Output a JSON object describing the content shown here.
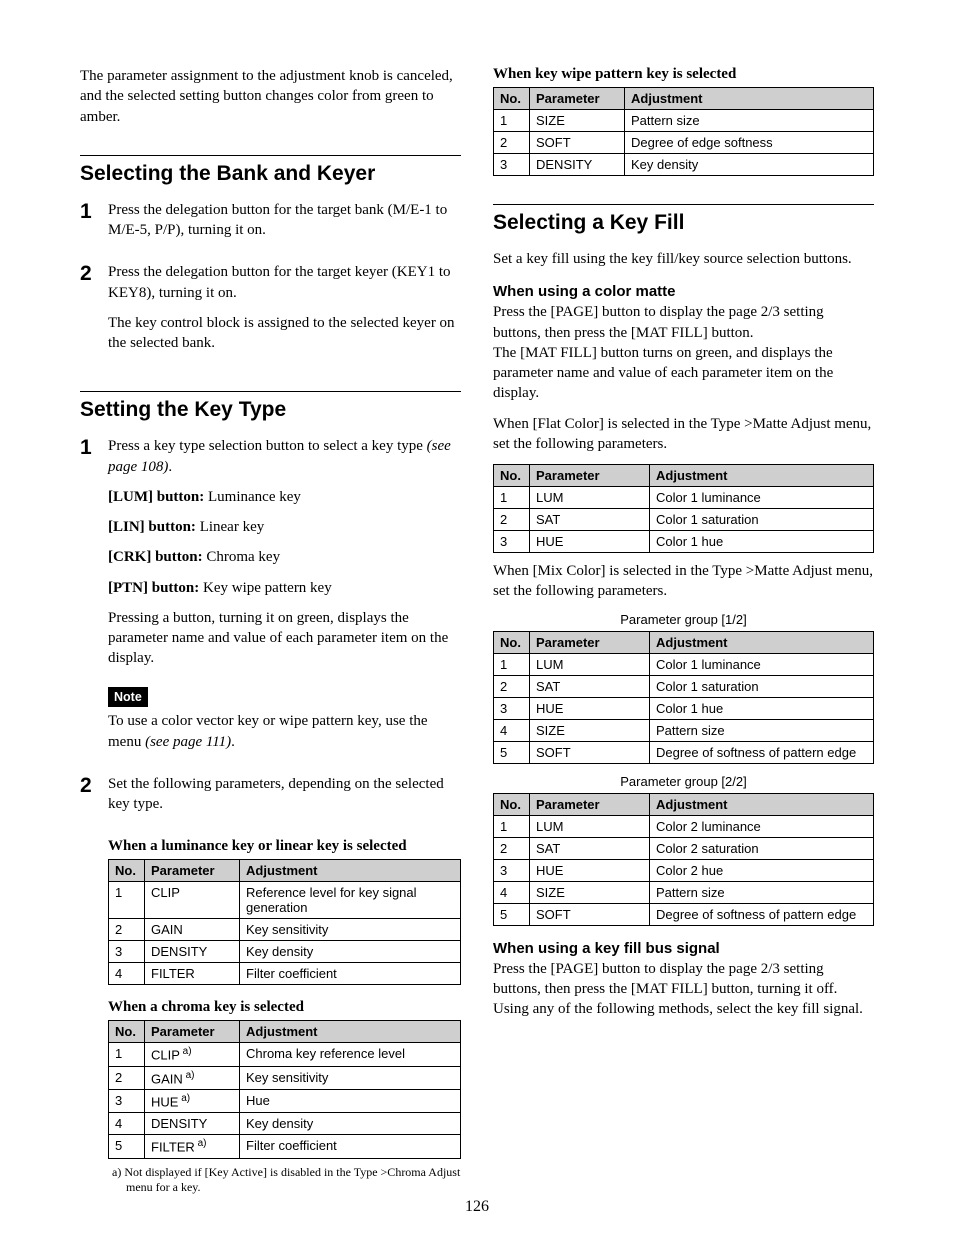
{
  "page_number": "126",
  "left": {
    "intro": "The parameter assignment to the adjustment knob is canceled, and the selected setting button changes color from green to amber.",
    "h_bank": "Selecting the Bank and Keyer",
    "bank_step1": "Press the delegation button for the target bank (M/E-1 to M/E-5, P/P), turning it on.",
    "bank_step2": "Press the delegation button for the target keyer (KEY1 to KEY8), turning it on.",
    "bank_step2_p2": "The key control block is assigned to the selected keyer on the selected bank.",
    "h_keytype": "Setting the Key Type",
    "kt_step1_a": "Press a key type selection button to select a key type ",
    "kt_step1_b": "(see page 108)",
    "kt_step1_c": ".",
    "lum_b": "[LUM] button: ",
    "lum_t": "Luminance key",
    "lin_b": "[LIN] button: ",
    "lin_t": "Linear key",
    "crk_b": "[CRK] button: ",
    "crk_t": "Chroma key",
    "ptn_b": "[PTN] button: ",
    "ptn_t": "Key wipe pattern key",
    "kt_after_btns": "Pressing a button, turning it on green, displays the parameter name and value of each parameter item on the display.",
    "note_label": "Note",
    "note_text_a": "To use a color vector key or wipe pattern key, use the menu ",
    "note_text_b": "(see page 111)",
    "note_text_c": ".",
    "kt_step2": "Set the following parameters, depending on the selected key type.",
    "sub_lum": "When a luminance key or linear key is selected",
    "sub_chroma": "When a chroma key is selected",
    "tbl_hdr_no": "No.",
    "tbl_hdr_param": "Parameter",
    "tbl_hdr_adj": "Adjustment",
    "tbl_lum": {
      "rows": [
        {
          "no": "1",
          "p": "CLIP",
          "a": "Reference level for key signal generation"
        },
        {
          "no": "2",
          "p": "GAIN",
          "a": "Key sensitivity"
        },
        {
          "no": "3",
          "p": "DENSITY",
          "a": "Key density"
        },
        {
          "no": "4",
          "p": "FILTER",
          "a": "Filter coefficient"
        }
      ]
    },
    "tbl_chroma": {
      "rows": [
        {
          "no": "1",
          "p": "CLIP",
          "sup": " a)",
          "a": "Chroma key reference level"
        },
        {
          "no": "2",
          "p": "GAIN",
          "sup": " a)",
          "a": "Key sensitivity"
        },
        {
          "no": "3",
          "p": "HUE",
          "sup": " a)",
          "a": "Hue"
        },
        {
          "no": "4",
          "p": "DENSITY",
          "sup": "",
          "a": "Key density"
        },
        {
          "no": "5",
          "p": "FILTER",
          "sup": " a)",
          "a": "Filter coefficient"
        }
      ]
    },
    "footnote": "a) Not displayed if [Key Active] is disabled in the Type >Chroma Adjust menu for a key."
  },
  "right": {
    "sub_wipe": "When key wipe pattern key is selected",
    "tbl_wipe": {
      "rows": [
        {
          "no": "1",
          "p": "SIZE",
          "a": "Pattern size"
        },
        {
          "no": "2",
          "p": "SOFT",
          "a": "Degree of edge softness"
        },
        {
          "no": "3",
          "p": "DENSITY",
          "a": "Key density"
        }
      ]
    },
    "h_keyfill": "Selecting a Key Fill",
    "keyfill_intro": "Set a key fill using the key fill/key source selection buttons.",
    "sub_matte": "When using a color matte",
    "matte_p1": "Press the [PAGE] button to display the page 2/3 setting buttons, then press the [MAT FILL] button.",
    "matte_p2": "The [MAT FILL] button turns on green, and displays the parameter name and value of each parameter item on the display.",
    "matte_flat": "When [Flat Color] is selected in the Type >Matte Adjust menu, set the following parameters.",
    "tbl_flat": {
      "rows": [
        {
          "no": "1",
          "p": "LUM",
          "a": "Color 1 luminance"
        },
        {
          "no": "2",
          "p": "SAT",
          "a": "Color 1 saturation"
        },
        {
          "no": "3",
          "p": "HUE",
          "a": "Color 1 hue"
        }
      ]
    },
    "matte_mix": "When [Mix Color] is selected in the Type >Matte Adjust menu, set the following parameters.",
    "cap12": "Parameter group [1/2]",
    "tbl_mix1": {
      "rows": [
        {
          "no": "1",
          "p": "LUM",
          "a": "Color 1 luminance"
        },
        {
          "no": "2",
          "p": "SAT",
          "a": "Color 1 saturation"
        },
        {
          "no": "3",
          "p": "HUE",
          "a": "Color 1 hue"
        },
        {
          "no": "4",
          "p": "SIZE",
          "a": "Pattern size"
        },
        {
          "no": "5",
          "p": "SOFT",
          "a": "Degree of softness of pattern edge"
        }
      ]
    },
    "cap22": "Parameter group [2/2]",
    "tbl_mix2": {
      "rows": [
        {
          "no": "1",
          "p": "LUM",
          "a": "Color 2 luminance"
        },
        {
          "no": "2",
          "p": "SAT",
          "a": "Color 2 saturation"
        },
        {
          "no": "3",
          "p": "HUE",
          "a": "Color 2 hue"
        },
        {
          "no": "4",
          "p": "SIZE",
          "a": "Pattern size"
        },
        {
          "no": "5",
          "p": "SOFT",
          "a": "Degree of softness of pattern edge"
        }
      ]
    },
    "sub_bus": "When using a key fill bus signal",
    "bus_p": "Press the [PAGE] button to display the page 2/3 setting buttons, then press the [MAT FILL] button, turning it off. Using any of the following methods, select the key fill signal."
  }
}
